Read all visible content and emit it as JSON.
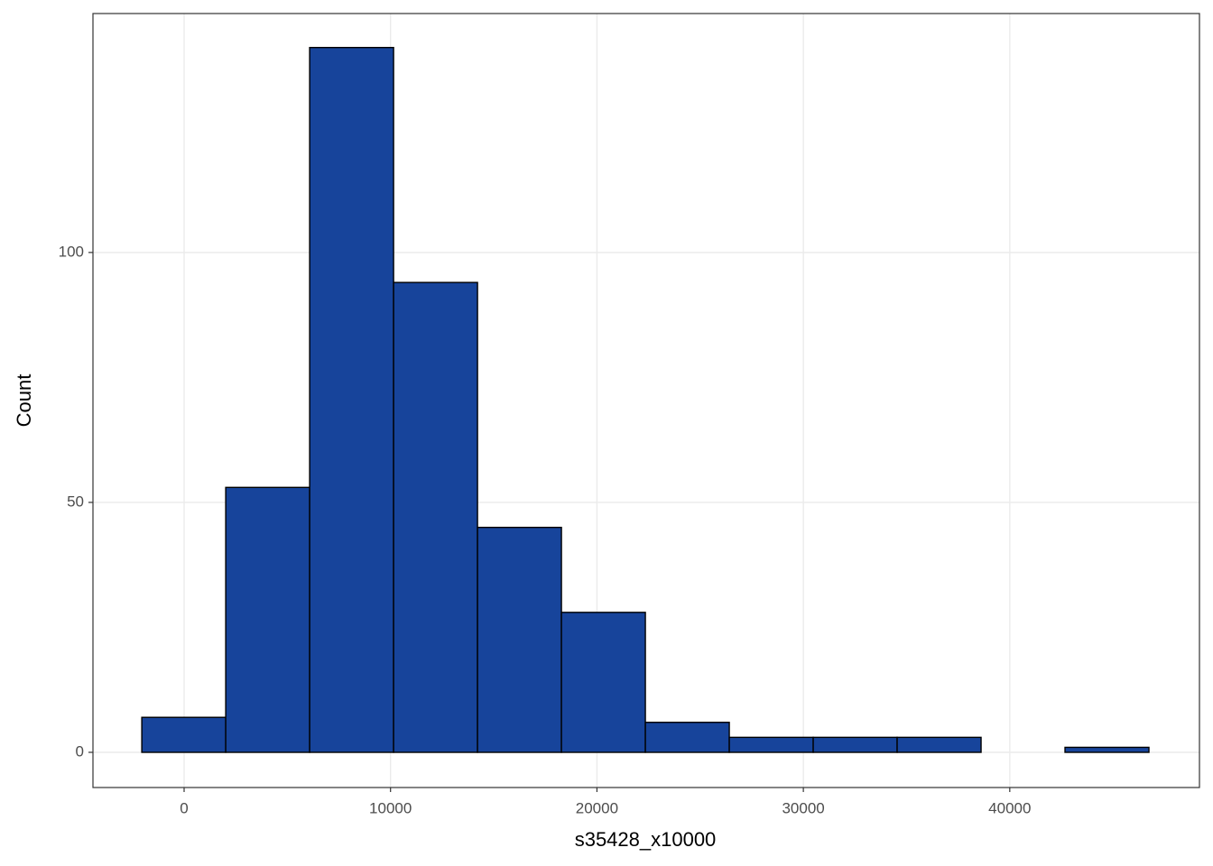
{
  "chart_data": {
    "type": "histogram",
    "x_label": "s35428_x10000",
    "y_label": "Count",
    "bins": [
      -2050,
      2016,
      6082,
      10148,
      14214,
      18280,
      22346,
      26412,
      30478,
      34544,
      38610,
      42676,
      46742
    ],
    "values": [
      7,
      53,
      141,
      94,
      45,
      28,
      6,
      3,
      3,
      3,
      0,
      1
    ],
    "color": "#17449b",
    "xlim": [
      -4416,
      49190
    ],
    "xticks": [
      0,
      10000,
      20000,
      30000,
      40000
    ],
    "ylim": [
      -7.04,
      147.8
    ],
    "yticks": [
      0,
      50,
      100
    ],
    "grid": true
  }
}
